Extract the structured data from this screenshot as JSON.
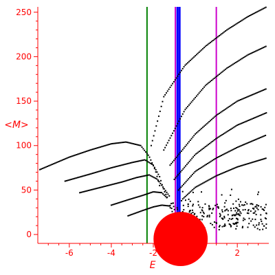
{
  "chart_data": {
    "type": "scatter",
    "xlabel": "E",
    "ylabel": "<M>",
    "xlim": [
      -7.5,
      3.5
    ],
    "ylim": [
      -10,
      256
    ],
    "x_ticks": [
      -6,
      -4,
      -2,
      0,
      2
    ],
    "y_ticks": [
      0,
      50,
      100,
      150,
      200,
      250
    ],
    "x_tick_labels": [
      "-6",
      "-4",
      "-2",
      "0",
      "2"
    ],
    "y_tick_labels": [
      "0",
      "50",
      "100",
      "150",
      "200",
      "250"
    ],
    "grid": false,
    "vertical_lines": [
      {
        "x": -2.3,
        "color": "#008000"
      },
      {
        "x": -0.95,
        "color": "#cc00cc"
      },
      {
        "x": -0.85,
        "color": "#0000ff"
      },
      {
        "x": -0.75,
        "color": "#0000ff"
      },
      {
        "x": 1.0,
        "color": "#cc00cc"
      }
    ],
    "series_upper_curves": [
      {
        "points": [
          [
            -2.1,
            100
          ],
          [
            -1.5,
            155
          ],
          [
            -0.5,
            190
          ],
          [
            0.5,
            212
          ],
          [
            1.5,
            230
          ],
          [
            2.5,
            245
          ],
          [
            3.4,
            256
          ]
        ]
      },
      {
        "points": [
          [
            -1.5,
            95
          ],
          [
            -0.5,
            140
          ],
          [
            0.5,
            168
          ],
          [
            1.5,
            187
          ],
          [
            2.5,
            202
          ],
          [
            3.4,
            212
          ]
        ]
      },
      {
        "points": [
          [
            -1.2,
            78
          ],
          [
            0,
            113
          ],
          [
            1,
            134
          ],
          [
            2,
            150
          ],
          [
            3.4,
            164
          ]
        ]
      },
      {
        "points": [
          [
            -1.0,
            62
          ],
          [
            0,
            90
          ],
          [
            1,
            108
          ],
          [
            2,
            123
          ],
          [
            3.4,
            137
          ]
        ]
      },
      {
        "points": [
          [
            -0.8,
            50
          ],
          [
            0,
            71
          ],
          [
            1,
            86
          ],
          [
            2,
            98
          ],
          [
            3.4,
            112
          ]
        ]
      },
      {
        "points": [
          [
            -0.6,
            40
          ],
          [
            0,
            53
          ],
          [
            1,
            66
          ],
          [
            2,
            76
          ],
          [
            3.4,
            86
          ]
        ]
      }
    ],
    "series_lower_curves": [
      {
        "points": [
          [
            -7.4,
            73
          ],
          [
            -6,
            87
          ],
          [
            -5,
            95
          ],
          [
            -4,
            102
          ],
          [
            -3.3,
            104
          ],
          [
            -2.6,
            100
          ],
          [
            -2.2,
            88
          ],
          [
            -1.9,
            72
          ],
          [
            -1.7,
            55
          ],
          [
            -1.6,
            42
          ]
        ]
      },
      {
        "points": [
          [
            -6.2,
            60
          ],
          [
            -5,
            68
          ],
          [
            -4,
            75
          ],
          [
            -3,
            81
          ],
          [
            -2.4,
            84
          ],
          [
            -2.0,
            78
          ],
          [
            -1.7,
            65
          ],
          [
            -1.5,
            50
          ],
          [
            -1.3,
            40
          ]
        ]
      },
      {
        "points": [
          [
            -5.5,
            47
          ],
          [
            -4.5,
            53
          ],
          [
            -3.5,
            59
          ],
          [
            -2.8,
            64
          ],
          [
            -2.2,
            67
          ],
          [
            -1.8,
            62
          ],
          [
            -1.5,
            52
          ],
          [
            -1.2,
            42
          ]
        ]
      },
      {
        "points": [
          [
            -4.0,
            33
          ],
          [
            -3.2,
            39
          ],
          [
            -2.5,
            44
          ],
          [
            -2.0,
            48
          ],
          [
            -1.6,
            47
          ],
          [
            -1.3,
            40
          ]
        ]
      },
      {
        "points": [
          [
            -3.2,
            21
          ],
          [
            -2.5,
            27
          ],
          [
            -2.0,
            31
          ],
          [
            -1.6,
            33
          ],
          [
            -1.2,
            32
          ]
        ]
      }
    ],
    "red_cluster": [
      {
        "x": -0.7,
        "y": -5,
        "r": 3.5
      },
      {
        "x": 0.05,
        "y": -6,
        "r": 0.4
      },
      {
        "x": -1.0,
        "y": -1,
        "r": 0.25
      },
      {
        "x": -1.4,
        "y": 0,
        "r": 0.2
      },
      {
        "x": -0.5,
        "y": 5,
        "r": 0.15
      }
    ]
  }
}
